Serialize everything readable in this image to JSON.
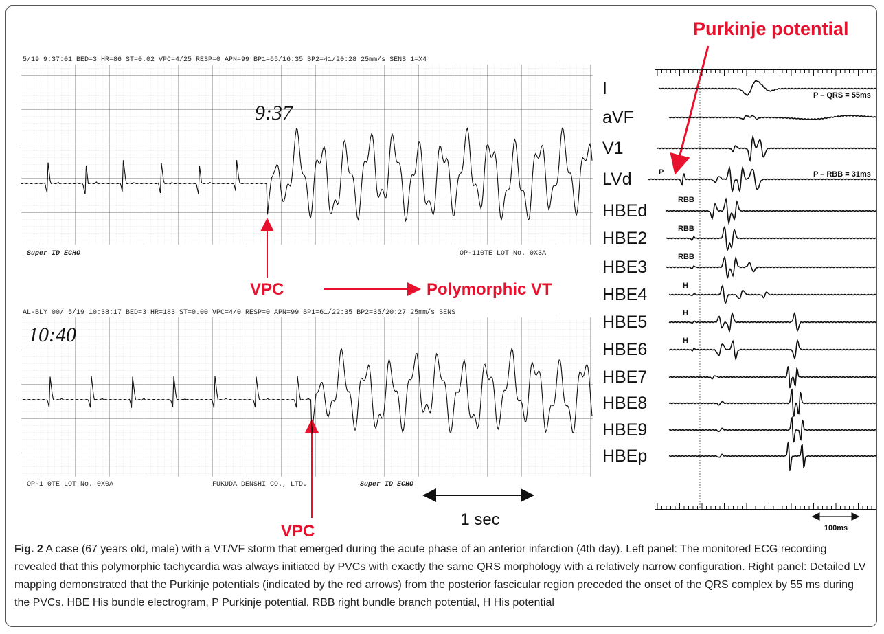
{
  "figure": {
    "left_panel": {
      "strips": [
        {
          "header": "5/19  9:37:01 BED=3 HR=86 ST=0.02 VPC=4/25 RESP=0 APN=99 BP1=65/16:35 BP2=41/20:28 25mm/s SENS 1=X4",
          "handwritten": "9:37",
          "footer_left": "Super ID ECHO",
          "footer_right": "OP-110TE LOT No. 0X3A"
        },
        {
          "header": "AL-BLY 00/ 5/19 10:38:17 BED=3 HR=183 ST=0.00 VPC=4/0 RESP=0 APN=99 BP1=61/22:35 BP2=35/20:27 25mm/s SENS",
          "handwritten": "10:40",
          "footer_left": "OP-1 0TE LOT No. 0X0A",
          "footer_mid": "FUKUDA DENSHI CO., LTD.",
          "footer_right": "Super ID ECHO"
        }
      ],
      "vpc_top": "VPC",
      "vpc_bottom": "VPC",
      "polymorphic_vt": "Polymorphic VT",
      "scale": "1 sec"
    },
    "right_panel": {
      "title": "Purkinje potential",
      "leads": [
        "I",
        "aVF",
        "V1",
        "LVd",
        "HBEd",
        "HBE2",
        "HBE3",
        "HBE4",
        "HBE5",
        "HBE6",
        "HBE7",
        "HBE8",
        "HBE9",
        "HBEp"
      ],
      "p_qrs": "P – QRS = 55ms",
      "p_rbb": "P – RBB = 31ms",
      "p": "P",
      "rbb": [
        "RBB",
        "RBB",
        "RBB"
      ],
      "h": [
        "H",
        "H",
        "H"
      ],
      "scale": "100ms"
    },
    "caption": {
      "label": "Fig. 2",
      "text": " A case (67 years old, male) with a VT/VF storm that emerged during the acute phase of an anterior infarction (4th day). Left panel: The monitored ECG recording revealed that this polymorphic tachycardia was always initiated by PVCs with exactly the same QRS morphology with a relatively narrow configuration. Right panel: Detailed LV mapping demonstrated that the Purkinje potentials (indicated by the red arrows) from the posterior fascicular region preceded the onset of the QRS complex by 55 ms during the PVCs. HBE His bundle electrogram, P Purkinje potential, RBB right bundle branch potential, H His potential"
    }
  }
}
